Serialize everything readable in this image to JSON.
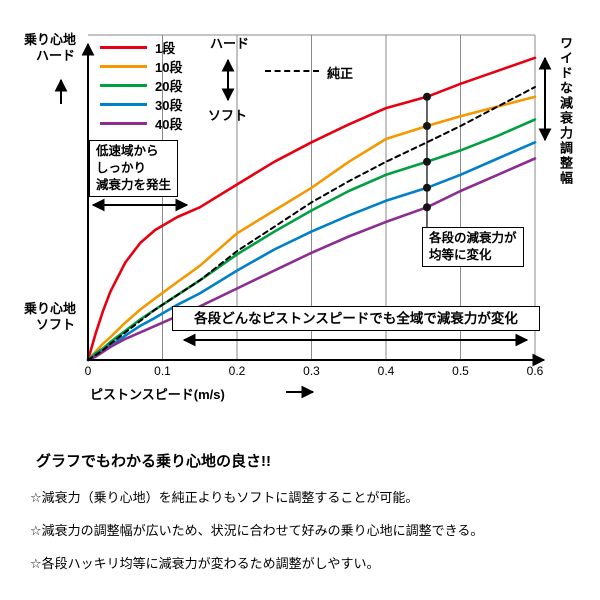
{
  "chart_data": {
    "type": "line",
    "xlabel": "ピストンスピード(m/s)",
    "ylabel_top": [
      "乗り心地",
      "ハード"
    ],
    "ylabel_bottom": [
      "乗り心地",
      "ソフト"
    ],
    "xlim": [
      0,
      0.6
    ],
    "ylim": [
      0,
      100
    ],
    "x_ticks": [
      "0",
      "0.1",
      "0.2",
      "0.3",
      "0.4",
      "0.5",
      "0.6"
    ],
    "x_tick_values": [
      0,
      0.1,
      0.2,
      0.3,
      0.4,
      0.5,
      0.6
    ],
    "grid": "vertical-only",
    "legend_position": "top-left-inside",
    "x": [
      0,
      0.01,
      0.02,
      0.03,
      0.05,
      0.07,
      0.09,
      0.12,
      0.15,
      0.2,
      0.25,
      0.3,
      0.35,
      0.4,
      0.455,
      0.5,
      0.55,
      0.6
    ],
    "series": [
      {
        "name": "1段",
        "color": "#e60012",
        "values": [
          0,
          8,
          15,
          21,
          30,
          36,
          40,
          44,
          47,
          54,
          61,
          67,
          72.5,
          77.5,
          81,
          85,
          89,
          93
        ]
      },
      {
        "name": "10段",
        "color": "#f39800",
        "values": [
          0,
          2.5,
          5,
          7,
          11.5,
          15.5,
          19,
          24,
          29,
          39,
          46,
          53,
          61,
          68,
          72,
          75,
          78,
          81
        ]
      },
      {
        "name": "20段",
        "color": "#00a040",
        "values": [
          0,
          2,
          3.5,
          5.5,
          9,
          12.5,
          15.5,
          20,
          24.5,
          32.5,
          39.5,
          46,
          52,
          57,
          61,
          64.5,
          69,
          74
        ]
      },
      {
        "name": "30段",
        "color": "#0080c8",
        "values": [
          0,
          1.5,
          3,
          4.5,
          7.5,
          10.5,
          13,
          17,
          20.5,
          27.5,
          34,
          39.5,
          44.5,
          49,
          53,
          57,
          62,
          67
        ]
      },
      {
        "name": "40段",
        "color": "#8b2e8f",
        "values": [
          0,
          1,
          2.5,
          4,
          6.5,
          8.5,
          10.5,
          13.5,
          16.5,
          22,
          27.5,
          33,
          38,
          42.5,
          47,
          52,
          57,
          62
        ]
      },
      {
        "name": "純正",
        "color": "#000000",
        "dash": "5 4",
        "values": [
          0,
          1.5,
          3,
          5,
          8.5,
          12,
          15.5,
          20,
          24.5,
          33.5,
          41,
          48.5,
          55,
          61,
          67,
          72,
          78,
          84
        ]
      }
    ],
    "marker_x": 0.455
  },
  "legend": {
    "hard_label": "ハード",
    "soft_label": "ソフト"
  },
  "annotations": {
    "right_vertical": "ワイドな減衰力調整幅",
    "low_speed_box": [
      "低速域から",
      "しっかり",
      "減衰力を発生"
    ],
    "equal_steps_box": [
      "各段の減衰力が",
      "均等に変化"
    ],
    "full_range_box": "各段どんなピストンスピードでも全域で減衰力が変化"
  },
  "footer": {
    "heading": "グラフでもわかる乗り心地の良さ!!",
    "bullets": [
      "☆減衰力（乗り心地）を純正よりもソフトに調整することが可能。",
      "☆減衰力の調整幅が広いため、状況に合わせて好みの乗り心地に調整できる。",
      "☆各段ハッキリ均等に減衰力が変わるため調整がしやすい。"
    ]
  }
}
